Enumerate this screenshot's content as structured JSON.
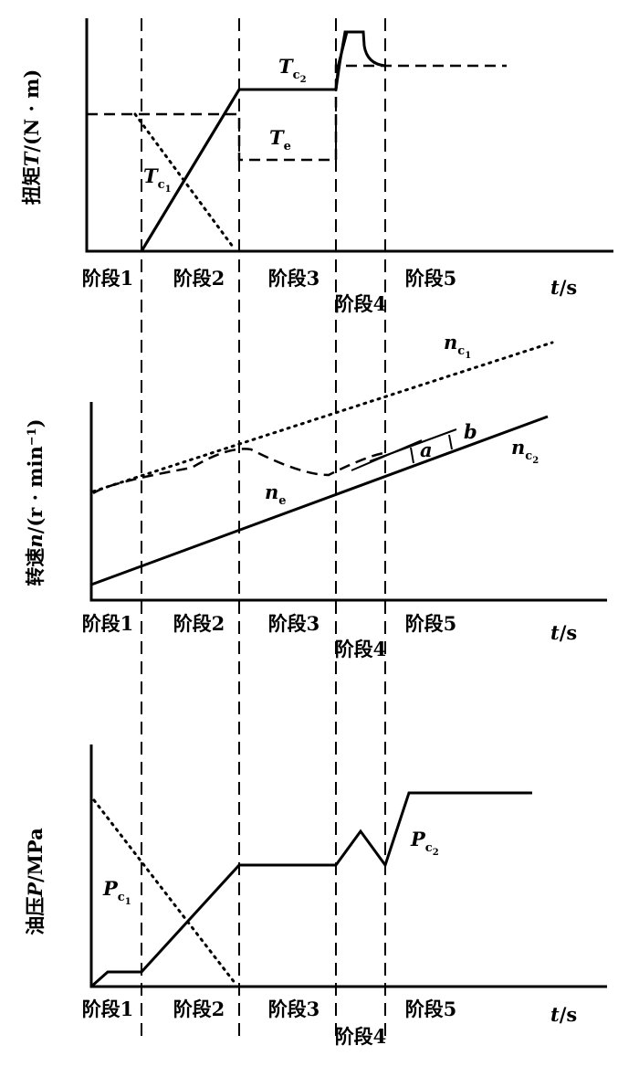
{
  "panels": [
    {
      "y_label": [
        {
          "text": "扭矩"
        },
        {
          "text": "T",
          "style": "italic"
        },
        {
          "text": "/(N · m)"
        }
      ],
      "stages": [
        "阶段1",
        "阶段2",
        "阶段3",
        "阶段4",
        "阶段5"
      ],
      "time_label": [
        {
          "text": "t",
          "style": "italic"
        },
        {
          "text": "/s"
        }
      ],
      "curve_labels": [
        {
          "main": "T",
          "sub": "c",
          "subsub": "2"
        },
        {
          "main": "T",
          "sub": "e"
        },
        {
          "main": "T",
          "sub": "c",
          "subsub": "1"
        }
      ]
    },
    {
      "y_label": [
        {
          "text": "转速"
        },
        {
          "text": "n",
          "style": "italic"
        },
        {
          "text": "/(r · min"
        },
        {
          "text": "−1",
          "style": "sup"
        },
        {
          "text": ")"
        }
      ],
      "stages": [
        "阶段1",
        "阶段2",
        "阶段3",
        "阶段4",
        "阶段5"
      ],
      "time_label": [
        {
          "text": "t",
          "style": "italic"
        },
        {
          "text": "/s"
        }
      ],
      "curve_labels": [
        {
          "main": "n",
          "sub": "c",
          "subsub": "1"
        },
        {
          "main": "n",
          "sub": "e"
        },
        {
          "main": "n",
          "sub": "c",
          "subsub": "2"
        },
        {
          "main": "a"
        },
        {
          "main": "b"
        }
      ]
    },
    {
      "y_label": [
        {
          "text": "油压"
        },
        {
          "text": "P",
          "style": "italic"
        },
        {
          "text": "/MPa"
        }
      ],
      "stages": [
        "阶段1",
        "阶段2",
        "阶段3",
        "阶段4",
        "阶段5"
      ],
      "time_label": [
        {
          "text": "t",
          "style": "italic"
        },
        {
          "text": "/s"
        }
      ],
      "curve_labels": [
        {
          "main": "P",
          "sub": "c",
          "subsub": "1"
        },
        {
          "main": "P",
          "sub": "c",
          "subsub": "2"
        }
      ]
    }
  ]
}
